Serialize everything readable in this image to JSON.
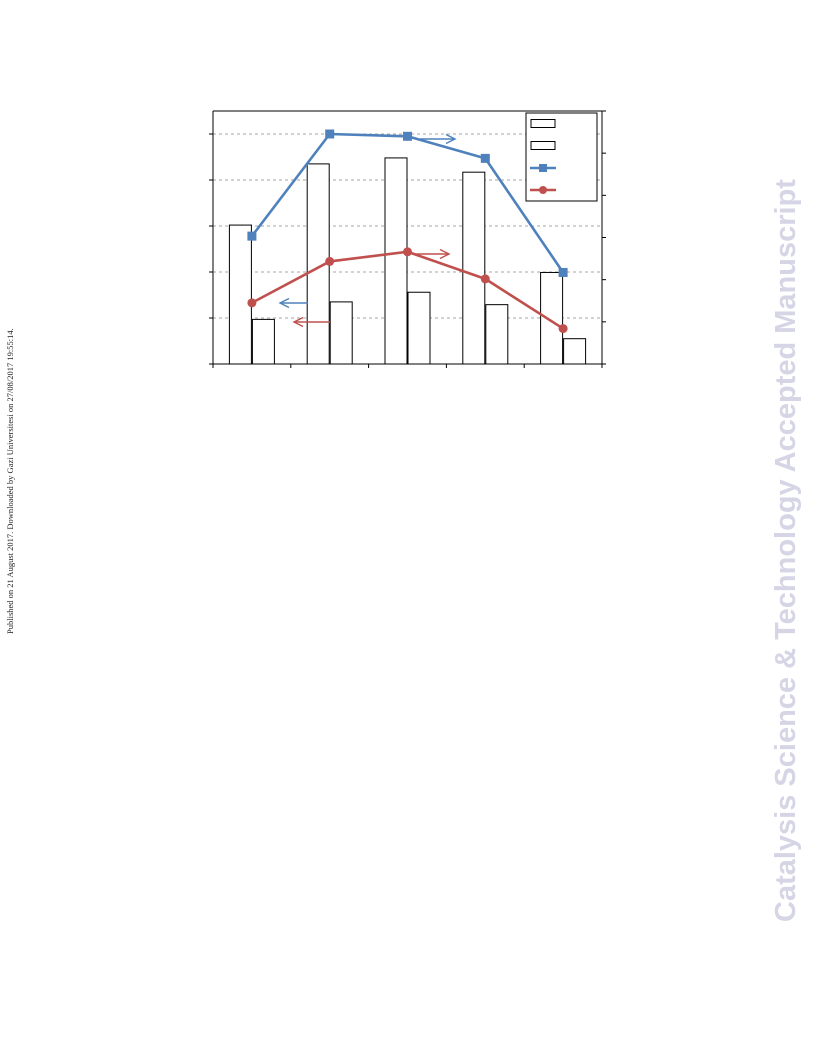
{
  "side_note": "Published on 21 August 2017. Downloaded by Gazi Universitesi on 27/08/2017 19:55:14.",
  "watermark": "Catalysis Science & Technology Accepted Manuscript",
  "colors": {
    "blue_series": "#4f81bd",
    "red_series": "#c0504d",
    "grid": "#a6a6a6",
    "bar_fill": "#ffffff",
    "bar_stroke": "#000000",
    "watermark": "#d5d5e6"
  },
  "chart_data": {
    "type": "bar",
    "title": "",
    "xlabel": "",
    "ylabel_left": "",
    "ylabel_right": "",
    "categories": [
      "",
      "",
      "",
      "",
      ""
    ],
    "y_left_range": [
      0,
      5.5
    ],
    "y_right_range": [
      0,
      6
    ],
    "left_ticks": [
      0,
      1,
      2,
      3,
      4,
      5
    ],
    "right_ticks": [
      0,
      1,
      2,
      3,
      4,
      5,
      6
    ],
    "gridlines": [
      1,
      2,
      3,
      4,
      5
    ],
    "grid": true,
    "legend_position": "top-right",
    "bars": [
      {
        "name": "",
        "axis": "left",
        "values": [
          3.02,
          4.35,
          4.48,
          4.17,
          1.99
        ]
      },
      {
        "name": "",
        "axis": "left",
        "values": [
          0.97,
          1.35,
          1.56,
          1.29,
          0.55
        ]
      }
    ],
    "lines": [
      {
        "name": "",
        "axis": "left",
        "marker": "square",
        "color": "#4f81bd",
        "values": [
          2.78,
          5.0,
          4.95,
          4.47,
          1.99
        ]
      },
      {
        "name": "",
        "axis": "left",
        "marker": "circle",
        "color": "#c0504d",
        "values": [
          1.33,
          2.23,
          2.44,
          1.85,
          0.77
        ]
      }
    ],
    "annotations": [
      {
        "type": "arrow",
        "direction": "right",
        "color": "#4f81bd",
        "meaning": "blue series on right axis"
      },
      {
        "type": "arrow",
        "direction": "right",
        "color": "#c0504d",
        "meaning": "red series on right axis"
      },
      {
        "type": "arrow",
        "direction": "left",
        "color": "#4f81bd",
        "meaning": "blue series on left axis"
      },
      {
        "type": "arrow",
        "direction": "left",
        "color": "#c0504d",
        "meaning": "red series on left axis"
      }
    ]
  }
}
